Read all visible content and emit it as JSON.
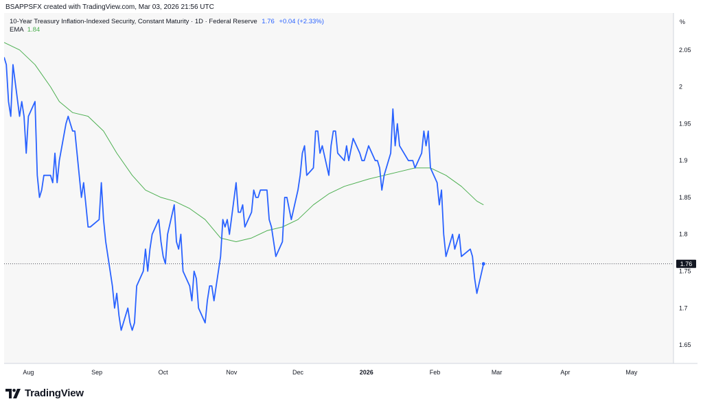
{
  "header": {
    "text": "BSAPPSFX created with TradingView.com, Mar 03, 2026 21:56 UTC"
  },
  "legend": {
    "symbol": "10-Year Treasury Inflation-Indexed Security, Constant Maturity · 1D · Federal Reserve",
    "last_value": "1.76",
    "change": "+0.04 (+2.33%)",
    "ema_label": "EMA",
    "ema_value": "1.84"
  },
  "axis": {
    "unit": "%",
    "price_label": "1.76"
  },
  "brand": {
    "name": "TradingView"
  },
  "colors": {
    "series": "#2962ff",
    "ema": "#4caf50",
    "plot_bg": "#f7f7f7"
  },
  "chart_data": {
    "type": "line",
    "yticks": [
      1.65,
      1.7,
      1.75,
      1.8,
      1.85,
      1.9,
      1.95,
      2,
      2.05
    ],
    "ylim": [
      1.625,
      2.1
    ],
    "x_range": [
      "2025-07-21",
      "2026-05-20"
    ],
    "xticks": [
      {
        "date": "2025-08-01",
        "label": "Aug",
        "bold": false
      },
      {
        "date": "2025-09-01",
        "label": "Sep",
        "bold": false
      },
      {
        "date": "2025-10-01",
        "label": "Oct",
        "bold": false
      },
      {
        "date": "2025-11-01",
        "label": "Nov",
        "bold": false
      },
      {
        "date": "2025-12-01",
        "label": "Dec",
        "bold": false
      },
      {
        "date": "2026-01-01",
        "label": "2026",
        "bold": true
      },
      {
        "date": "2026-02-01",
        "label": "Feb",
        "bold": false
      },
      {
        "date": "2026-03-01",
        "label": "Mar",
        "bold": false
      },
      {
        "date": "2026-04-01",
        "label": "Apr",
        "bold": false
      },
      {
        "date": "2026-05-01",
        "label": "May",
        "bold": false
      }
    ],
    "grid": false,
    "last_price": 1.76,
    "series": [
      {
        "name": "10-Year Treasury Inflation-Indexed Security, Constant Maturity",
        "points": [
          [
            "2025-07-21",
            2.04
          ],
          [
            "2025-07-22",
            2.03
          ],
          [
            "2025-07-23",
            1.98
          ],
          [
            "2025-07-24",
            1.96
          ],
          [
            "2025-07-25",
            2.03
          ],
          [
            "2025-07-28",
            1.96
          ],
          [
            "2025-07-29",
            1.98
          ],
          [
            "2025-07-30",
            1.96
          ],
          [
            "2025-07-31",
            1.91
          ],
          [
            "2025-08-01",
            1.96
          ],
          [
            "2025-08-04",
            1.98
          ],
          [
            "2025-08-05",
            1.88
          ],
          [
            "2025-08-06",
            1.85
          ],
          [
            "2025-08-07",
            1.86
          ],
          [
            "2025-08-08",
            1.88
          ],
          [
            "2025-08-11",
            1.88
          ],
          [
            "2025-08-12",
            1.87
          ],
          [
            "2025-08-13",
            1.91
          ],
          [
            "2025-08-14",
            1.87
          ],
          [
            "2025-08-15",
            1.9
          ],
          [
            "2025-08-18",
            1.95
          ],
          [
            "2025-08-19",
            1.96
          ],
          [
            "2025-08-20",
            1.95
          ],
          [
            "2025-08-21",
            1.94
          ],
          [
            "2025-08-22",
            1.94
          ],
          [
            "2025-08-25",
            1.85
          ],
          [
            "2025-08-26",
            1.87
          ],
          [
            "2025-08-27",
            1.84
          ],
          [
            "2025-08-28",
            1.81
          ],
          [
            "2025-08-29",
            1.81
          ],
          [
            "2025-09-02",
            1.82
          ],
          [
            "2025-09-03",
            1.87
          ],
          [
            "2025-09-04",
            1.82
          ],
          [
            "2025-09-05",
            1.79
          ],
          [
            "2025-09-08",
            1.73
          ],
          [
            "2025-09-09",
            1.7
          ],
          [
            "2025-09-10",
            1.72
          ],
          [
            "2025-09-11",
            1.69
          ],
          [
            "2025-09-12",
            1.67
          ],
          [
            "2025-09-15",
            1.7
          ],
          [
            "2025-09-16",
            1.68
          ],
          [
            "2025-09-17",
            1.67
          ],
          [
            "2025-09-18",
            1.68
          ],
          [
            "2025-09-19",
            1.73
          ],
          [
            "2025-09-22",
            1.75
          ],
          [
            "2025-09-23",
            1.78
          ],
          [
            "2025-09-24",
            1.75
          ],
          [
            "2025-09-25",
            1.78
          ],
          [
            "2025-09-26",
            1.8
          ],
          [
            "2025-09-29",
            1.82
          ],
          [
            "2025-09-30",
            1.79
          ],
          [
            "2025-10-01",
            1.77
          ],
          [
            "2025-10-02",
            1.76
          ],
          [
            "2025-10-03",
            1.8
          ],
          [
            "2025-10-06",
            1.84
          ],
          [
            "2025-10-07",
            1.79
          ],
          [
            "2025-10-08",
            1.78
          ],
          [
            "2025-10-09",
            1.8
          ],
          [
            "2025-10-10",
            1.75
          ],
          [
            "2025-10-13",
            1.73
          ],
          [
            "2025-10-14",
            1.71
          ],
          [
            "2025-10-15",
            1.75
          ],
          [
            "2025-10-16",
            1.74
          ],
          [
            "2025-10-17",
            1.7
          ],
          [
            "2025-10-20",
            1.68
          ],
          [
            "2025-10-21",
            1.71
          ],
          [
            "2025-10-22",
            1.73
          ],
          [
            "2025-10-23",
            1.73
          ],
          [
            "2025-10-24",
            1.71
          ],
          [
            "2025-10-27",
            1.77
          ],
          [
            "2025-10-28",
            1.82
          ],
          [
            "2025-10-29",
            1.81
          ],
          [
            "2025-10-30",
            1.82
          ],
          [
            "2025-10-31",
            1.8
          ],
          [
            "2025-11-03",
            1.87
          ],
          [
            "2025-11-04",
            1.83
          ],
          [
            "2025-11-05",
            1.83
          ],
          [
            "2025-11-06",
            1.84
          ],
          [
            "2025-11-07",
            1.81
          ],
          [
            "2025-11-10",
            1.83
          ],
          [
            "2025-11-11",
            1.86
          ],
          [
            "2025-11-12",
            1.85
          ],
          [
            "2025-11-13",
            1.85
          ],
          [
            "2025-11-14",
            1.86
          ],
          [
            "2025-11-17",
            1.86
          ],
          [
            "2025-11-18",
            1.82
          ],
          [
            "2025-11-19",
            1.81
          ],
          [
            "2025-11-20",
            1.79
          ],
          [
            "2025-11-21",
            1.77
          ],
          [
            "2025-11-24",
            1.79
          ],
          [
            "2025-11-25",
            1.85
          ],
          [
            "2025-11-26",
            1.85
          ],
          [
            "2025-11-28",
            1.82
          ],
          [
            "2025-12-01",
            1.86
          ],
          [
            "2025-12-02",
            1.88
          ],
          [
            "2025-12-03",
            1.91
          ],
          [
            "2025-12-04",
            1.92
          ],
          [
            "2025-12-05",
            1.88
          ],
          [
            "2025-12-08",
            1.89
          ],
          [
            "2025-12-09",
            1.94
          ],
          [
            "2025-12-10",
            1.94
          ],
          [
            "2025-12-11",
            1.91
          ],
          [
            "2025-12-12",
            1.92
          ],
          [
            "2025-12-15",
            1.88
          ],
          [
            "2025-12-16",
            1.92
          ],
          [
            "2025-12-17",
            1.94
          ],
          [
            "2025-12-18",
            1.94
          ],
          [
            "2025-12-19",
            1.91
          ],
          [
            "2025-12-22",
            1.9
          ],
          [
            "2025-12-23",
            1.92
          ],
          [
            "2025-12-24",
            1.9
          ],
          [
            "2025-12-26",
            1.93
          ],
          [
            "2025-12-29",
            1.91
          ],
          [
            "2025-12-30",
            1.9
          ],
          [
            "2025-12-31",
            1.9
          ],
          [
            "2026-01-02",
            1.92
          ],
          [
            "2026-01-05",
            1.9
          ],
          [
            "2026-01-06",
            1.9
          ],
          [
            "2026-01-07",
            1.89
          ],
          [
            "2026-01-08",
            1.86
          ],
          [
            "2026-01-09",
            1.88
          ],
          [
            "2026-01-12",
            1.91
          ],
          [
            "2026-01-13",
            1.97
          ],
          [
            "2026-01-14",
            1.92
          ],
          [
            "2026-01-15",
            1.95
          ],
          [
            "2026-01-16",
            1.92
          ],
          [
            "2026-01-20",
            1.9
          ],
          [
            "2026-01-21",
            1.9
          ],
          [
            "2026-01-22",
            1.9
          ],
          [
            "2026-01-23",
            1.89
          ],
          [
            "2026-01-26",
            1.91
          ],
          [
            "2026-01-27",
            1.94
          ],
          [
            "2026-01-28",
            1.92
          ],
          [
            "2026-01-29",
            1.94
          ],
          [
            "2026-01-30",
            1.89
          ],
          [
            "2026-02-02",
            1.87
          ],
          [
            "2026-02-03",
            1.84
          ],
          [
            "2026-02-04",
            1.86
          ],
          [
            "2026-02-05",
            1.8
          ],
          [
            "2026-02-06",
            1.77
          ],
          [
            "2026-02-09",
            1.8
          ],
          [
            "2026-02-10",
            1.78
          ],
          [
            "2026-02-11",
            1.79
          ],
          [
            "2026-02-12",
            1.8
          ],
          [
            "2026-02-13",
            1.77
          ],
          [
            "2026-02-17",
            1.78
          ],
          [
            "2026-02-18",
            1.77
          ],
          [
            "2026-02-19",
            1.74
          ],
          [
            "2026-02-20",
            1.72
          ],
          [
            "2026-02-23",
            1.76
          ]
        ]
      },
      {
        "name": "EMA",
        "points": [
          [
            "2025-07-21",
            2.06
          ],
          [
            "2025-07-28",
            2.05
          ],
          [
            "2025-08-04",
            2.03
          ],
          [
            "2025-08-11",
            2.0
          ],
          [
            "2025-08-15",
            1.98
          ],
          [
            "2025-08-21",
            1.965
          ],
          [
            "2025-08-28",
            1.96
          ],
          [
            "2025-09-04",
            1.94
          ],
          [
            "2025-09-10",
            1.91
          ],
          [
            "2025-09-17",
            1.88
          ],
          [
            "2025-09-23",
            1.86
          ],
          [
            "2025-09-30",
            1.85
          ],
          [
            "2025-10-06",
            1.845
          ],
          [
            "2025-10-13",
            1.835
          ],
          [
            "2025-10-20",
            1.82
          ],
          [
            "2025-10-27",
            1.795
          ],
          [
            "2025-11-03",
            1.79
          ],
          [
            "2025-11-10",
            1.795
          ],
          [
            "2025-11-17",
            1.805
          ],
          [
            "2025-11-24",
            1.81
          ],
          [
            "2025-12-01",
            1.82
          ],
          [
            "2025-12-08",
            1.84
          ],
          [
            "2025-12-15",
            1.855
          ],
          [
            "2025-12-22",
            1.865
          ],
          [
            "2026-01-02",
            1.875
          ],
          [
            "2026-01-09",
            1.88
          ],
          [
            "2026-01-16",
            1.885
          ],
          [
            "2026-01-23",
            1.89
          ],
          [
            "2026-01-30",
            1.89
          ],
          [
            "2026-02-06",
            1.88
          ],
          [
            "2026-02-13",
            1.865
          ],
          [
            "2026-02-20",
            1.845
          ],
          [
            "2026-02-23",
            1.84
          ]
        ]
      }
    ]
  }
}
